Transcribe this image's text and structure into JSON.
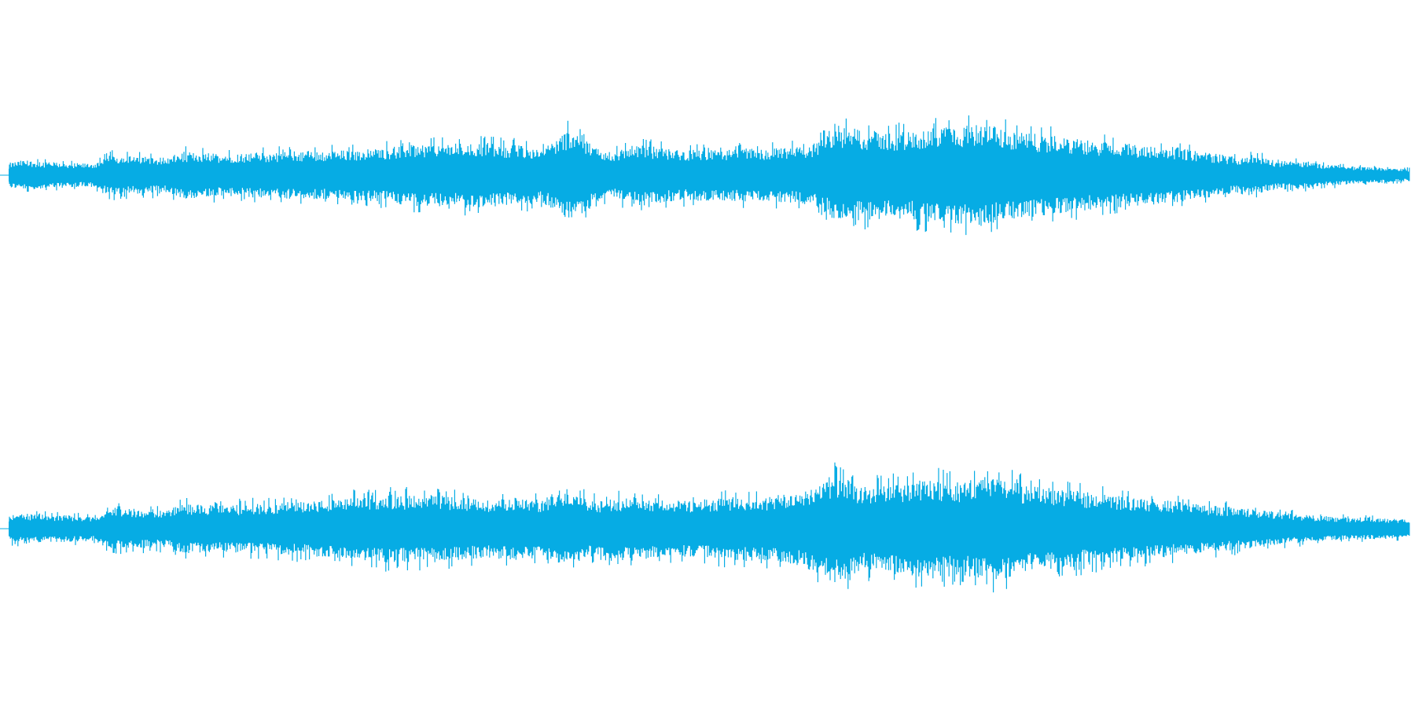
{
  "waveform": {
    "color": "#06acE4",
    "background": "#ffffff",
    "channels": [
      {
        "name": "",
        "envelope": [
          0.18,
          0.22,
          0.2,
          0.19,
          0.18,
          0.17,
          0.18,
          0.3,
          0.28,
          0.27,
          0.27,
          0.26,
          0.34,
          0.33,
          0.32,
          0.31,
          0.32,
          0.33,
          0.33,
          0.34,
          0.35,
          0.36,
          0.35,
          0.36,
          0.37,
          0.38,
          0.4,
          0.42,
          0.44,
          0.46,
          0.45,
          0.46,
          0.48,
          0.47,
          0.45,
          0.44,
          0.42,
          0.41,
          0.55,
          0.7,
          0.52,
          0.36,
          0.34,
          0.42,
          0.44,
          0.4,
          0.38,
          0.36,
          0.38,
          0.36,
          0.37,
          0.39,
          0.38,
          0.39,
          0.4,
          0.42,
          0.48,
          0.62,
          0.7,
          0.66,
          0.64,
          0.62,
          0.64,
          0.66,
          0.68,
          0.7,
          0.72,
          0.74,
          0.72,
          0.66,
          0.62,
          0.6,
          0.58,
          0.55,
          0.52,
          0.5,
          0.48,
          0.47,
          0.45,
          0.44,
          0.42,
          0.4,
          0.36,
          0.33,
          0.3,
          0.26,
          0.3,
          0.25,
          0.2,
          0.22,
          0.2,
          0.16,
          0.15,
          0.13,
          0.12,
          0.11,
          0.1,
          0.09
        ]
      },
      {
        "name": "",
        "envelope": [
          0.18,
          0.2,
          0.19,
          0.18,
          0.18,
          0.17,
          0.17,
          0.28,
          0.27,
          0.26,
          0.26,
          0.25,
          0.34,
          0.32,
          0.31,
          0.31,
          0.32,
          0.33,
          0.34,
          0.35,
          0.36,
          0.37,
          0.38,
          0.39,
          0.42,
          0.44,
          0.46,
          0.45,
          0.44,
          0.46,
          0.44,
          0.42,
          0.4,
          0.39,
          0.4,
          0.42,
          0.4,
          0.38,
          0.52,
          0.55,
          0.4,
          0.38,
          0.4,
          0.44,
          0.42,
          0.4,
          0.38,
          0.37,
          0.39,
          0.4,
          0.42,
          0.43,
          0.42,
          0.44,
          0.46,
          0.52,
          0.6,
          0.72,
          0.66,
          0.56,
          0.58,
          0.6,
          0.62,
          0.64,
          0.66,
          0.64,
          0.62,
          0.66,
          0.7,
          0.66,
          0.6,
          0.56,
          0.54,
          0.52,
          0.5,
          0.48,
          0.46,
          0.44,
          0.42,
          0.4,
          0.38,
          0.36,
          0.34,
          0.32,
          0.3,
          0.28,
          0.26,
          0.24,
          0.22,
          0.2,
          0.18,
          0.17,
          0.16,
          0.15,
          0.15,
          0.14,
          0.13,
          0.12
        ]
      }
    ]
  }
}
